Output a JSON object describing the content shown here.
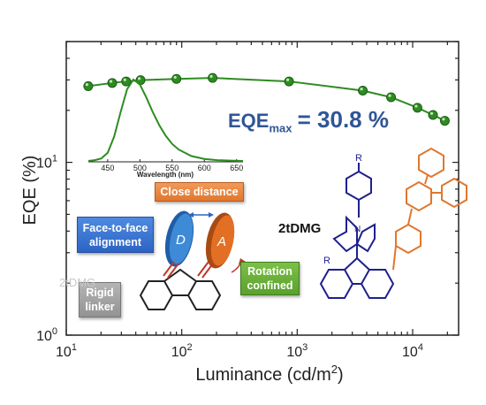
{
  "chart_data": {
    "type": "scatter",
    "title": "",
    "xlabel": "Luminance (cd/m",
    "xlabel_sup": "2",
    "xlabel_end": ")",
    "ylabel": "EQE (%)",
    "xscale": "log",
    "yscale": "log",
    "xlim": [
      10,
      25000
    ],
    "ylim": [
      1,
      50
    ],
    "x_ticks": [
      {
        "value": 10,
        "base": "10",
        "exp": "1"
      },
      {
        "value": 100,
        "base": "10",
        "exp": "2"
      },
      {
        "value": 1000,
        "base": "10",
        "exp": "3"
      },
      {
        "value": 10000,
        "base": "10",
        "exp": "4"
      }
    ],
    "y_ticks": [
      {
        "value": 1,
        "base": "10",
        "exp": "0"
      },
      {
        "value": 10,
        "base": "10",
        "exp": "1"
      }
    ],
    "series": [
      {
        "color": "#2e8b22",
        "x": [
          15.5,
          25,
          33,
          44,
          90,
          185,
          850,
          3700,
          6500,
          11000,
          15000,
          19000
        ],
        "y": [
          27.6,
          28.8,
          29.4,
          29.9,
          30.4,
          30.8,
          29.4,
          26.0,
          23.8,
          20.7,
          18.8,
          17.4
        ]
      }
    ],
    "annotation": {
      "text": "EQE",
      "subscript": "max",
      "value_text": "= 30.8 %"
    }
  },
  "inset": {
    "type": "line",
    "xlabel": "Wavelength (nm)",
    "color": "#2e8b22",
    "xlim": [
      420,
      660
    ],
    "x_ticks": [
      "450",
      "500",
      "550",
      "600",
      "650"
    ],
    "x": [
      420,
      430,
      440,
      450,
      460,
      470,
      480,
      490,
      500,
      510,
      520,
      530,
      540,
      550,
      560,
      580,
      600,
      620,
      640,
      660
    ],
    "y": [
      0.0,
      0.01,
      0.03,
      0.1,
      0.3,
      0.6,
      0.88,
      1.0,
      0.94,
      0.78,
      0.6,
      0.44,
      0.31,
      0.21,
      0.14,
      0.06,
      0.025,
      0.01,
      0.004,
      0.0
    ]
  },
  "schematic": {
    "labels": {
      "close_distance": "Close distance",
      "face_to_face_line1": "Face-to-face",
      "face_to_face_line2": "alignment",
      "rotation_line1": "Rotation",
      "rotation_line2": "confined",
      "rigid_line1": "Rigid",
      "rigid_line2": "linker"
    },
    "donor": "D",
    "acceptor": "A",
    "faint_label": "2tDMG",
    "molecule_name": "2tDMG",
    "substituent": "R"
  },
  "colors": {
    "series": "#2e8b22",
    "eqe_text": "#2f5597",
    "blue": "#2d63c4",
    "orange": "#e0772e",
    "green": "#5aa12e",
    "gray": "#939393",
    "navy": "#1f1f8f"
  }
}
